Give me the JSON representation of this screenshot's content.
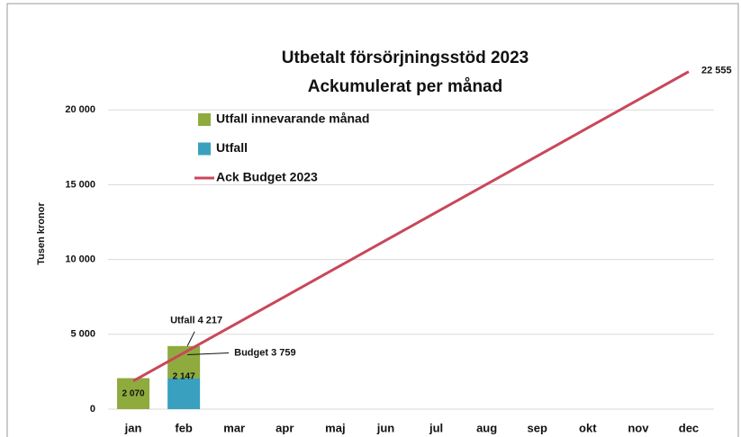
{
  "chart_data": {
    "type": "bar",
    "stacked": true,
    "title": "Utbetalt försörjningsstöd 2023",
    "subtitle": "Ackumulerat per månad",
    "y_label": "Tusen kronor",
    "categories": [
      "jan",
      "feb",
      "mar",
      "apr",
      "maj",
      "jun",
      "jul",
      "aug",
      "sep",
      "okt",
      "nov",
      "dec"
    ],
    "series": [
      {
        "name": "Utfall innevarande månad",
        "type": "bar",
        "color": "#8fab3e",
        "values": [
          2070,
          2147,
          null,
          null,
          null,
          null,
          null,
          null,
          null,
          null,
          null,
          null
        ],
        "value_labels": [
          "2 070",
          "2 147",
          null,
          null,
          null,
          null,
          null,
          null,
          null,
          null,
          null,
          null
        ]
      },
      {
        "name": "Utfall",
        "type": "bar",
        "color": "#3aa0bf",
        "values": [
          null,
          2070,
          null,
          null,
          null,
          null,
          null,
          null,
          null,
          null,
          null,
          null
        ]
      },
      {
        "name": "Ack Budget 2023",
        "type": "line",
        "color": "#c9475a",
        "values": [
          1880,
          3759,
          5639,
          7518,
          9398,
          11278,
          13157,
          15037,
          16916,
          18796,
          20675,
          22555
        ],
        "value_labels": [
          null,
          "Budget 3 759",
          null,
          null,
          null,
          null,
          null,
          null,
          null,
          null,
          null,
          "22 555"
        ]
      }
    ],
    "annotations": [
      "Utfall 4 217"
    ],
    "ylim": [
      0,
      25000
    ],
    "yticks": [
      0,
      {
        "value": 5000,
        "label": "5 000"
      },
      {
        "value": 10000,
        "label": "10 000"
      },
      {
        "value": 15000,
        "label": "15 000"
      },
      {
        "value": 20000,
        "label": "20 000"
      }
    ],
    "grid": true,
    "legend": "upper left"
  }
}
